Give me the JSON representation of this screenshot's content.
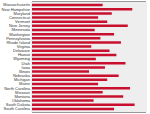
{
  "chart_data": {
    "type": "bar",
    "orientation": "horizontal",
    "categories": [
      "Massachusetts",
      "New Hampshire",
      "Maryland",
      "Connecticut",
      "Vermont",
      "New Jersey",
      "Minnesota",
      "Washington",
      "Pennsylvania",
      "Rhode Island",
      "Virginia",
      "Delaware",
      "Hawaii",
      "Wyoming",
      "Utah",
      "Iowa",
      "Illinois",
      "Nebraska",
      "Michigan",
      "Maine",
      "North Carolina",
      "Missouri",
      "Montana",
      "Oklahoma",
      "South Dakota",
      "South Carolina"
    ],
    "values": [
      62,
      88,
      70,
      58,
      66,
      84,
      55,
      72,
      60,
      78,
      52,
      68,
      74,
      56,
      82,
      64,
      50,
      76,
      66,
      58,
      86,
      62,
      80,
      54,
      90,
      72
    ],
    "color": "#c8102e",
    "xlim": [
      0,
      100
    ],
    "tick_labels": "y",
    "grid": false
  }
}
